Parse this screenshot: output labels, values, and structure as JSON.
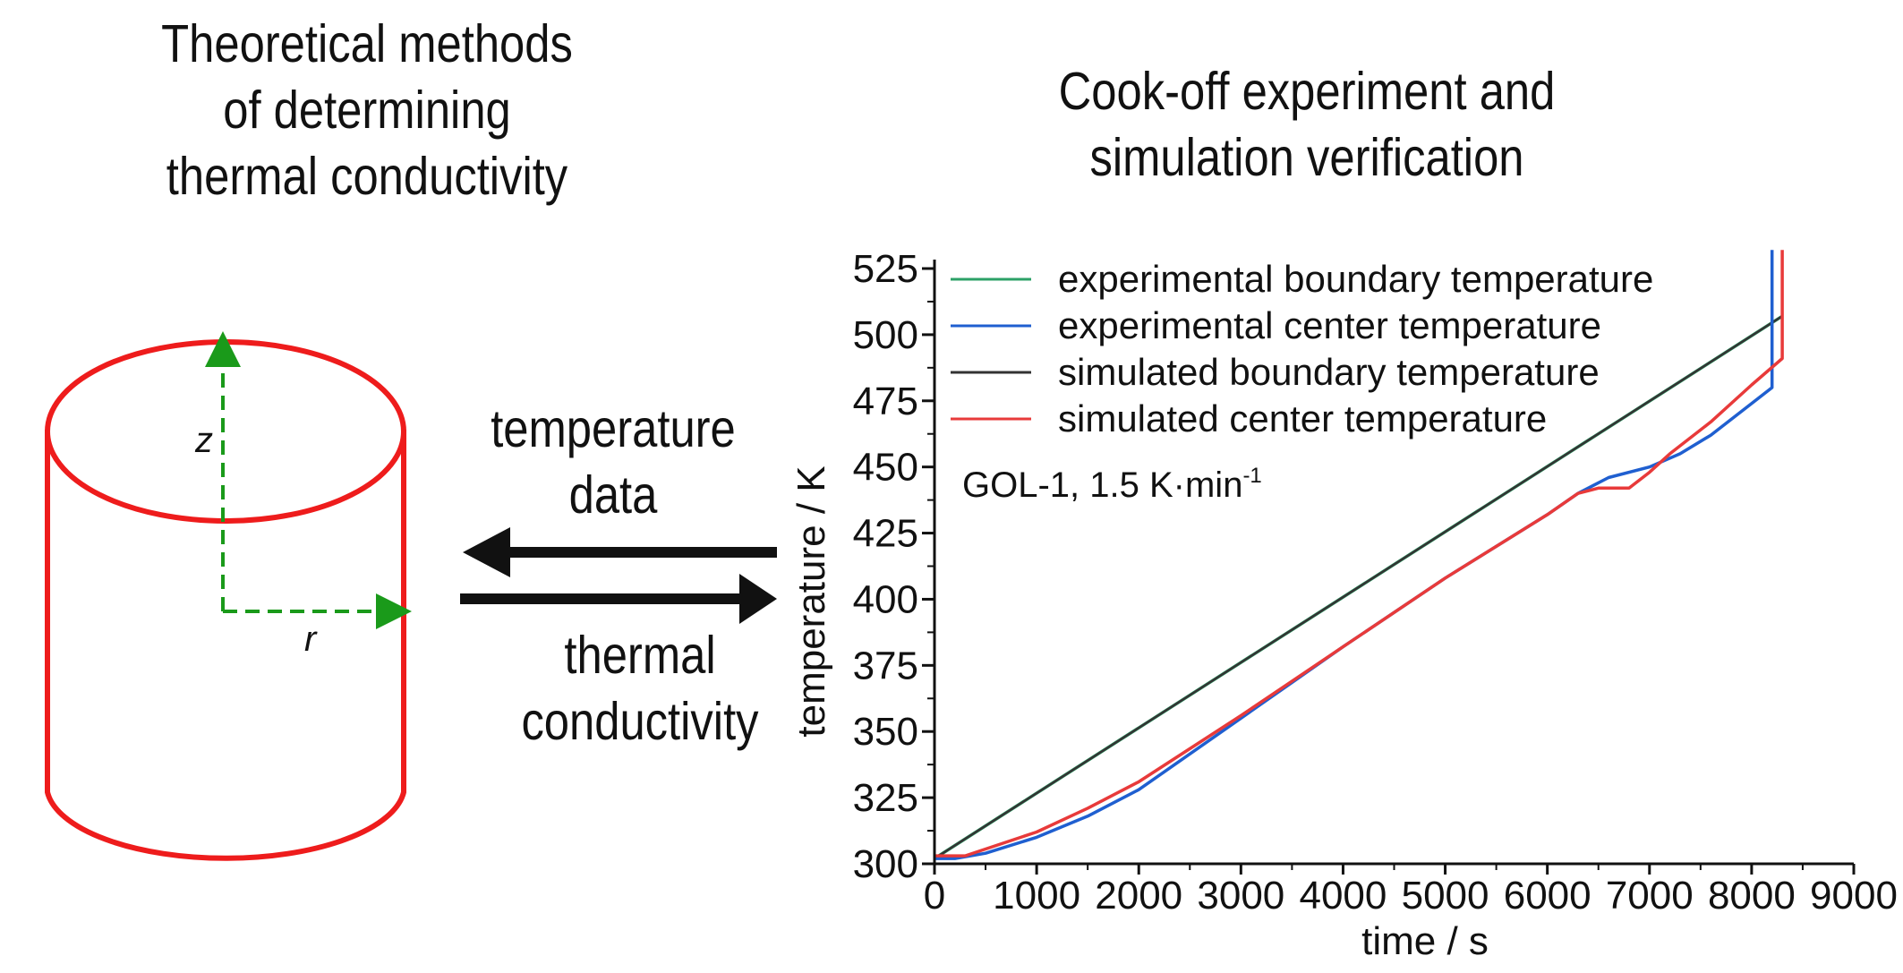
{
  "left_title": [
    "Theoretical methods",
    "of determining",
    "thermal conductivity"
  ],
  "right_title": [
    "Cook-off experiment and",
    "simulation verification"
  ],
  "cylinder": {
    "z_label": "z",
    "r_label": "r",
    "outline_color": "#ee1c1c",
    "axis_color": "#1a9a1a"
  },
  "arrows": {
    "top_label": [
      "temperature",
      "data"
    ],
    "bottom_label": [
      "thermal",
      "conductivity"
    ]
  },
  "chart_data": {
    "type": "line",
    "xlabel": "time / s",
    "ylabel": "temperature / K",
    "xlim": [
      0,
      9000
    ],
    "ylim": [
      300,
      525
    ],
    "xticks": [
      0,
      1000,
      2000,
      3000,
      4000,
      5000,
      6000,
      7000,
      8000,
      9000
    ],
    "yticks": [
      300,
      325,
      350,
      375,
      400,
      425,
      450,
      475,
      500,
      525
    ],
    "annotation": {
      "text": "GOL-1, 1.5 K·min",
      "superscript": "-1"
    },
    "legend_position": "top-left",
    "series": [
      {
        "name": "experimental boundary temperature",
        "color": "#2ca067",
        "x": [
          0,
          8300
        ],
        "y": [
          302,
          507
        ]
      },
      {
        "name": "experimental center temperature",
        "color": "#1f5fd0",
        "x": [
          0,
          200,
          500,
          1000,
          1500,
          2000,
          3000,
          4000,
          5000,
          6000,
          6300,
          6600,
          7000,
          7300,
          7600,
          8000,
          8200,
          8200
        ],
        "y": [
          302,
          302,
          304,
          310,
          318,
          328,
          355,
          382,
          408,
          432,
          440,
          446,
          450,
          455,
          462,
          474,
          480,
          532
        ]
      },
      {
        "name": "simulated boundary temperature",
        "color": "#333333",
        "x": [
          0,
          8300
        ],
        "y": [
          302,
          507
        ]
      },
      {
        "name": "simulated center temperature",
        "color": "#e83a3a",
        "x": [
          0,
          300,
          1000,
          1500,
          2000,
          3000,
          4000,
          5000,
          6000,
          6300,
          6500,
          6800,
          7000,
          7200,
          7600,
          8000,
          8300,
          8300
        ],
        "y": [
          303,
          303,
          312,
          321,
          331,
          356,
          382,
          408,
          432,
          440,
          442,
          442,
          448,
          455,
          467,
          481,
          491,
          532
        ]
      }
    ]
  }
}
